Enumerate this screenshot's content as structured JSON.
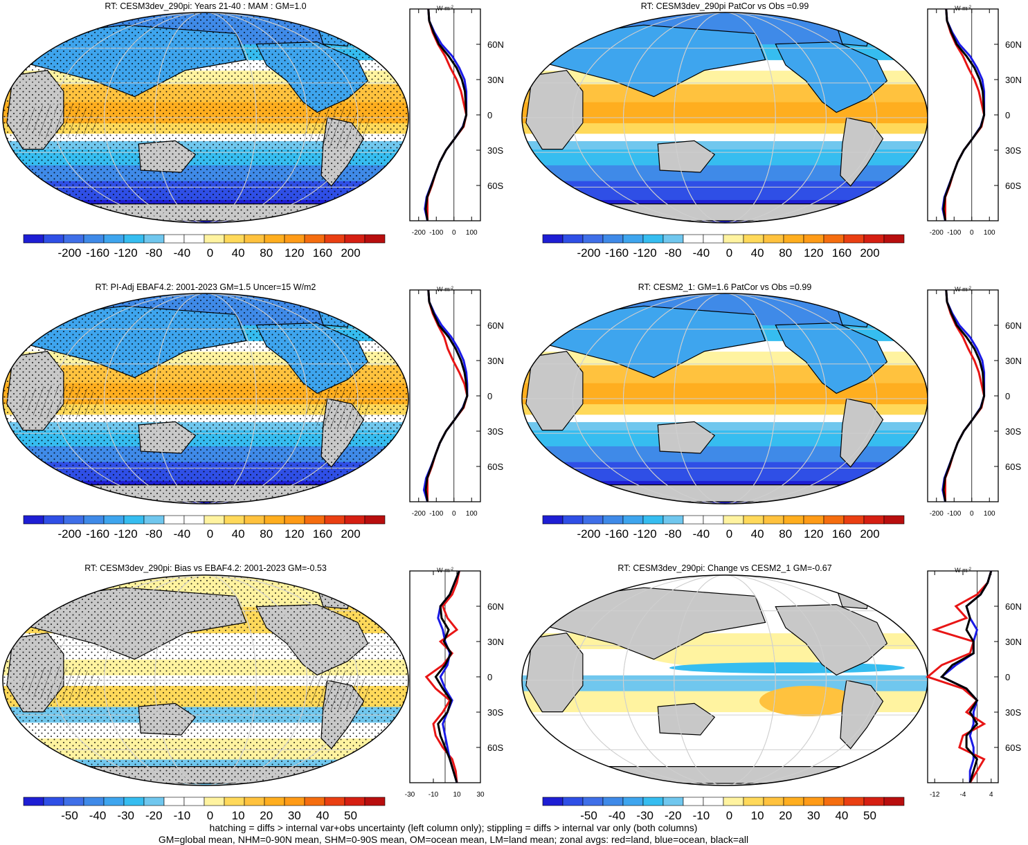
{
  "palette": [
    "#1e1ed4",
    "#2f4fe6",
    "#3f6fe8",
    "#3f8ae8",
    "#3ea5ee",
    "#36bdf0",
    "#70c7ee",
    "#ffffff",
    "#ffffff",
    "#fff3a0",
    "#ffd95a",
    "#ffc23e",
    "#ffae1f",
    "#ff9b17",
    "#f56d0f",
    "#ea3f12",
    "#d61f12",
    "#b80e0e"
  ],
  "axis_unit": "W m",
  "axis_unit_sup": "-2",
  "lat_labels": [
    "60N",
    "30N",
    "0",
    "30S",
    "60S"
  ],
  "panels": [
    {
      "title": "RT: CESM3dev_290pi: Years 21-40 : MAM : GM=1.0",
      "cb_labels": [
        "-200",
        "-160",
        "-120",
        "-80",
        "-40",
        "0",
        "40",
        "80",
        "120",
        "160",
        "200"
      ],
      "x_ticks": [
        "-200",
        "-100",
        "0",
        "100"
      ],
      "x_range": [
        -250,
        150
      ],
      "field": "mean",
      "hatch": true,
      "profile": {
        "lat": [
          -90,
          -80,
          -70,
          -60,
          -50,
          -40,
          -30,
          -20,
          -10,
          0,
          10,
          20,
          30,
          40,
          50,
          60,
          70,
          80,
          90
        ],
        "red": [
          -150,
          -150,
          -150,
          -125,
          -105,
          -80,
          -45,
          5,
          55,
          70,
          55,
          40,
          15,
          -20,
          -50,
          -90,
          -120,
          -140,
          -145
        ],
        "blue": [
          -150,
          -165,
          -155,
          -130,
          -105,
          -80,
          -45,
          5,
          50,
          70,
          70,
          70,
          60,
          30,
          -10,
          -70,
          -110,
          -140,
          -145
        ],
        "black": [
          -150,
          -160,
          -152,
          -128,
          -105,
          -80,
          -45,
          5,
          52,
          70,
          67,
          62,
          45,
          15,
          -30,
          -85,
          -115,
          -140,
          -145
        ]
      }
    },
    {
      "title": "RT: CESM3dev_290pi PatCor vs Obs =0.99",
      "cb_labels": [
        "-200",
        "-160",
        "-120",
        "-80",
        "-40",
        "0",
        "40",
        "80",
        "120",
        "160",
        "200"
      ],
      "x_ticks": [
        "-200",
        "-100",
        "0",
        "100"
      ],
      "x_range": [
        -250,
        150
      ],
      "field": "mean",
      "hatch": false,
      "profile": {
        "lat": [
          -90,
          -80,
          -70,
          -60,
          -50,
          -40,
          -30,
          -20,
          -10,
          0,
          10,
          20,
          30,
          40,
          50,
          60,
          70,
          80,
          90
        ],
        "red": [
          -150,
          -150,
          -150,
          -125,
          -105,
          -80,
          -45,
          5,
          55,
          70,
          55,
          40,
          15,
          -20,
          -50,
          -90,
          -120,
          -140,
          -145
        ],
        "blue": [
          -150,
          -165,
          -155,
          -130,
          -105,
          -80,
          -45,
          5,
          50,
          70,
          70,
          70,
          60,
          30,
          -10,
          -70,
          -110,
          -140,
          -145
        ],
        "black": [
          -150,
          -160,
          -152,
          -128,
          -105,
          -80,
          -45,
          5,
          52,
          70,
          67,
          62,
          45,
          15,
          -30,
          -85,
          -115,
          -140,
          -145
        ]
      }
    },
    {
      "title": "RT: PI-Adj EBAF4.2: 2001-2023 GM=1.5 Uncer=15 W/m2",
      "cb_labels": [
        "-200",
        "-160",
        "-120",
        "-80",
        "-40",
        "0",
        "40",
        "80",
        "120",
        "160",
        "200"
      ],
      "x_ticks": [
        "-200",
        "-100",
        "0",
        "100"
      ],
      "x_range": [
        -250,
        150
      ],
      "field": "mean",
      "hatch": true,
      "profile": {
        "lat": [
          -90,
          -80,
          -70,
          -60,
          -50,
          -40,
          -30,
          -20,
          -10,
          0,
          10,
          20,
          30,
          40,
          50,
          60,
          70,
          80,
          90
        ],
        "red": [
          -150,
          -150,
          -150,
          -125,
          -105,
          -80,
          -45,
          5,
          55,
          75,
          60,
          30,
          -5,
          -35,
          -55,
          -90,
          -120,
          -140,
          -145
        ],
        "blue": [
          -150,
          -170,
          -158,
          -130,
          -105,
          -80,
          -45,
          5,
          50,
          75,
          75,
          70,
          55,
          25,
          -15,
          -70,
          -110,
          -140,
          -145
        ],
        "black": [
          -150,
          -160,
          -152,
          -128,
          -105,
          -80,
          -45,
          5,
          52,
          75,
          70,
          60,
          40,
          10,
          -30,
          -85,
          -115,
          -140,
          -145
        ]
      }
    },
    {
      "title": "RT: CESM2_1: GM=1.6 PatCor vs Obs =0.99",
      "cb_labels": [
        "-200",
        "-160",
        "-120",
        "-80",
        "-40",
        "0",
        "40",
        "80",
        "120",
        "160",
        "200"
      ],
      "x_ticks": [
        "-200",
        "-100",
        "0",
        "100"
      ],
      "x_range": [
        -250,
        150
      ],
      "field": "mean",
      "hatch": false,
      "profile": {
        "lat": [
          -90,
          -80,
          -70,
          -60,
          -50,
          -40,
          -30,
          -20,
          -10,
          0,
          10,
          20,
          30,
          40,
          50,
          60,
          70,
          80,
          90
        ],
        "red": [
          -150,
          -150,
          -150,
          -125,
          -105,
          -80,
          -45,
          5,
          55,
          70,
          55,
          40,
          15,
          -20,
          -50,
          -90,
          -120,
          -140,
          -145
        ],
        "blue": [
          -150,
          -165,
          -155,
          -130,
          -105,
          -80,
          -45,
          5,
          50,
          70,
          70,
          70,
          60,
          30,
          -10,
          -70,
          -110,
          -140,
          -145
        ],
        "black": [
          -150,
          -160,
          -152,
          -128,
          -105,
          -80,
          -45,
          5,
          52,
          70,
          67,
          62,
          45,
          15,
          -30,
          -85,
          -115,
          -140,
          -145
        ]
      }
    },
    {
      "title": "RT: CESM3dev_290pi: Bias vs EBAF4.2: 2001-2023 GM=-0.53",
      "cb_labels": [
        "-50",
        "-40",
        "-30",
        "-20",
        "-10",
        "0",
        "10",
        "20",
        "30",
        "40",
        "50"
      ],
      "x_ticks": [
        "-30",
        "-10",
        "10",
        "30"
      ],
      "x_range": [
        -30,
        30
      ],
      "field": "bias",
      "hatch": true,
      "profile": {
        "lat": [
          -90,
          -80,
          -70,
          -60,
          -50,
          -40,
          -30,
          -20,
          -10,
          0,
          10,
          20,
          30,
          40,
          50,
          60,
          70,
          80,
          90
        ],
        "red": [
          10,
          9,
          6,
          -2,
          -8,
          -10,
          -2,
          4,
          -8,
          -16,
          -2,
          6,
          -4,
          10,
          2,
          -2,
          6,
          10,
          12
        ],
        "blue": [
          10,
          7,
          4,
          2,
          0,
          -2,
          2,
          6,
          0,
          -4,
          2,
          4,
          0,
          -2,
          -6,
          -4,
          4,
          8,
          12
        ],
        "black": [
          10,
          7,
          4,
          0,
          -4,
          -6,
          2,
          5,
          -2,
          -8,
          0,
          5,
          -1,
          3,
          -3,
          -4,
          4,
          8,
          12
        ]
      }
    },
    {
      "title": "RT: CESM3dev_290pi: Change vs CESM2_1 GM=-0.67",
      "cb_labels": [
        "-50",
        "-40",
        "-30",
        "-20",
        "-10",
        "0",
        "10",
        "20",
        "30",
        "40",
        "50"
      ],
      "x_ticks": [
        "-12",
        "-4",
        "4"
      ],
      "x_range": [
        -14,
        6
      ],
      "field": "change",
      "hatch": false,
      "profile": {
        "lat": [
          -90,
          -80,
          -70,
          -60,
          -50,
          -40,
          -30,
          -20,
          -10,
          0,
          10,
          20,
          30,
          40,
          50,
          60,
          70,
          80,
          90
        ],
        "red": [
          -2,
          0,
          2,
          -5,
          -4,
          2,
          -3,
          0,
          -4,
          -14,
          -10,
          -2,
          -1,
          -12,
          -3,
          -6,
          0,
          3,
          4
        ],
        "blue": [
          -2,
          -2,
          -1,
          -1,
          -2,
          -1,
          -1,
          0,
          -3,
          -10,
          -6,
          -1,
          -1,
          0,
          -2,
          -3,
          1,
          3,
          4
        ],
        "black": [
          -2,
          -1,
          0,
          -3,
          -3,
          0,
          -2,
          0,
          -3,
          -10,
          -7,
          -1,
          -1,
          -3,
          -2,
          -3,
          1,
          3,
          4
        ]
      }
    }
  ],
  "footnote_line1": "hatching = diffs > internal var+obs uncertainty (left column only); stippling = diffs > internal var only (both columns)",
  "footnote_line2": "GM=global mean, NHM=0-90N mean, SHM=0-90S mean, OM=ocean mean, LM=land mean; zonal avgs: red=land, blue=ocean, black=all"
}
